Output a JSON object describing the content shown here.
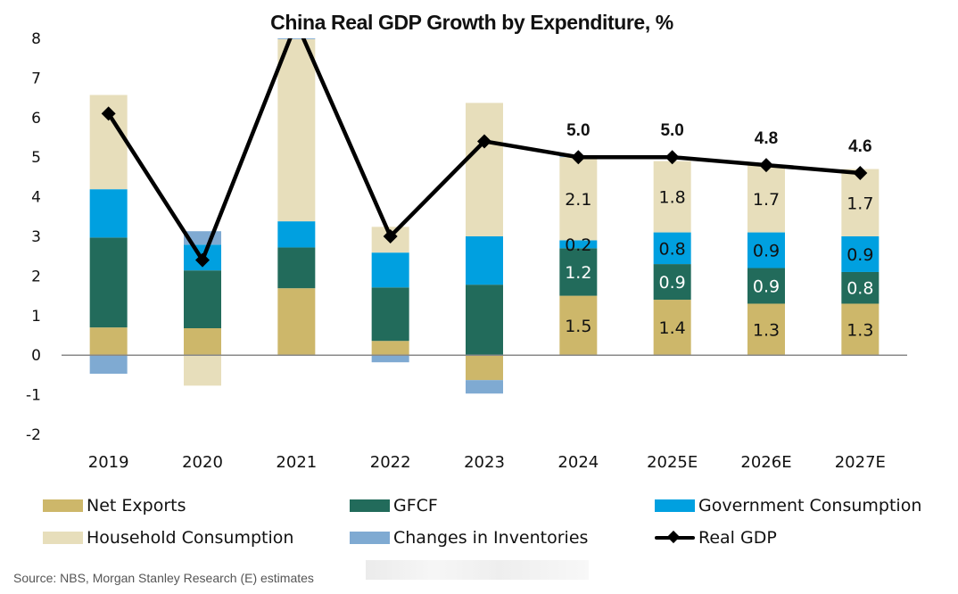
{
  "chart_data": {
    "type": "bar",
    "stacked": true,
    "title": "China Real GDP Growth by Expenditure, %",
    "xlabel": "",
    "ylabel": "",
    "ylim": [
      -2,
      8
    ],
    "yticks": [
      "8",
      "7",
      "6",
      "5",
      "4",
      "3",
      "2",
      "1",
      "0",
      "-1",
      "-2"
    ],
    "ytick_values": [
      8,
      7,
      6,
      5,
      4,
      3,
      2,
      1,
      0,
      -1,
      -2
    ],
    "grid": false,
    "legend_position": "bottom",
    "categories": [
      "2019",
      "2020",
      "2021",
      "2022",
      "2023",
      "2024",
      "2025E",
      "2026E",
      "2027E"
    ],
    "series": [
      {
        "name": "Net Exports",
        "color": "#CDB76A",
        "label_color": "#111111",
        "values": [
          0.7,
          0.68,
          1.69,
          0.36,
          -0.63,
          1.5,
          1.4,
          1.3,
          1.3
        ],
        "labels": [
          null,
          null,
          null,
          null,
          null,
          "1.5",
          "1.4",
          "1.3",
          "1.3"
        ]
      },
      {
        "name": "GFCF",
        "color": "#226B5B",
        "label_color": "#ffffff",
        "values": [
          2.27,
          1.46,
          1.03,
          1.35,
          1.78,
          1.2,
          0.9,
          0.9,
          0.8
        ],
        "labels": [
          null,
          null,
          null,
          null,
          null,
          "1.2",
          "0.9",
          "0.9",
          "0.8"
        ]
      },
      {
        "name": "Government Consumption",
        "color": "#00A0E0",
        "label_color": "#111111",
        "values": [
          1.22,
          0.65,
          0.66,
          0.88,
          1.22,
          0.2,
          0.8,
          0.9,
          0.9
        ],
        "labels": [
          null,
          null,
          null,
          null,
          null,
          "0.2",
          "0.8",
          "0.9",
          "0.9"
        ]
      },
      {
        "name": "Household Consumption",
        "color": "#E7DEBB",
        "label_color": "#111111",
        "values": [
          2.38,
          -0.77,
          4.6,
          0.65,
          3.37,
          2.1,
          1.8,
          1.7,
          1.7
        ],
        "labels": [
          null,
          null,
          null,
          null,
          null,
          "2.1",
          "1.8",
          "1.7",
          "1.7"
        ]
      },
      {
        "name": "Changes in Inventories",
        "color": "#7FAAD2",
        "label_color": "#111111",
        "values": [
          -0.47,
          0.34,
          0.05,
          -0.18,
          -0.34,
          0.05,
          0.0,
          0.0,
          0.0
        ],
        "labels": [
          null,
          null,
          null,
          null,
          null,
          null,
          null,
          null,
          null
        ]
      }
    ],
    "line": {
      "name": "Real GDP",
      "color": "#000000",
      "marker": "diamond",
      "values": [
        6.1,
        2.4,
        8.4,
        3.0,
        5.4,
        5.0,
        5.0,
        4.8,
        4.6
      ],
      "labels": [
        null,
        null,
        null,
        null,
        null,
        "5.0",
        "5.0",
        "4.8",
        "4.6"
      ]
    }
  },
  "legend": {
    "items": [
      {
        "label": "Net Exports",
        "color": "#CDB76A",
        "kind": "swatch"
      },
      {
        "label": "GFCF",
        "color": "#226B5B",
        "kind": "swatch"
      },
      {
        "label": "Government Consumption",
        "color": "#00A0E0",
        "kind": "swatch"
      },
      {
        "label": "Household Consumption",
        "color": "#E7DEBB",
        "kind": "swatch"
      },
      {
        "label": "Changes in Inventories",
        "color": "#7FAAD2",
        "kind": "swatch"
      },
      {
        "label": "Real GDP",
        "color": "#000000",
        "kind": "line-diamond"
      }
    ]
  },
  "source": "Source: NBS, Morgan Stanley Research (E) estimates"
}
